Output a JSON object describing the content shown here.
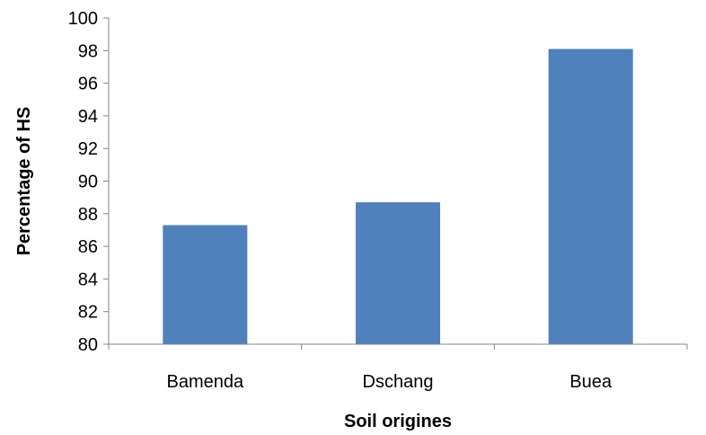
{
  "chart_data": {
    "type": "bar",
    "title": "",
    "xlabel": "Soil origines",
    "ylabel": "Percentage of HS",
    "categories": [
      "Bamenda",
      "Dschang",
      "Buea"
    ],
    "values": [
      87.3,
      88.7,
      98.1
    ],
    "ylim": [
      80,
      100
    ],
    "yticks": [
      80,
      82,
      84,
      86,
      88,
      90,
      92,
      94,
      96,
      98,
      100
    ],
    "grid": false,
    "legend": "none",
    "bar_color": "#4F81BD",
    "axis_color": "#868686"
  }
}
